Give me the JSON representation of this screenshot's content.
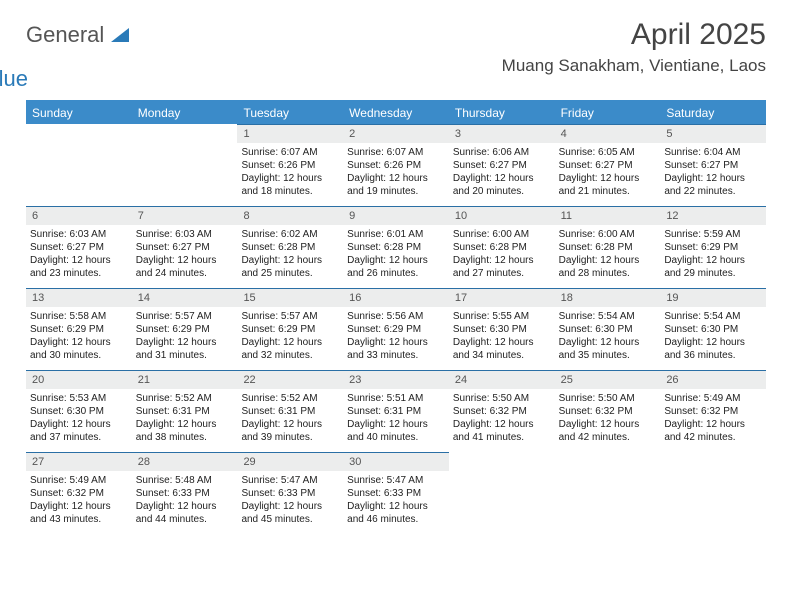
{
  "brand": {
    "general": "General",
    "blue": "Blue"
  },
  "title": "April 2025",
  "location": "Muang Sanakham, Vientiane, Laos",
  "day_headers": [
    "Sunday",
    "Monday",
    "Tuesday",
    "Wednesday",
    "Thursday",
    "Friday",
    "Saturday"
  ],
  "colors": {
    "header_bg": "#3b8bc9",
    "daynum_bg": "#eceded",
    "rule": "#2a6fa5",
    "text": "#222222"
  },
  "weeks": [
    [
      {
        "empty": true
      },
      {
        "empty": true
      },
      {
        "day": "1",
        "sunrise": "Sunrise: 6:07 AM",
        "sunset": "Sunset: 6:26 PM",
        "dl1": "Daylight: 12 hours",
        "dl2": "and 18 minutes."
      },
      {
        "day": "2",
        "sunrise": "Sunrise: 6:07 AM",
        "sunset": "Sunset: 6:26 PM",
        "dl1": "Daylight: 12 hours",
        "dl2": "and 19 minutes."
      },
      {
        "day": "3",
        "sunrise": "Sunrise: 6:06 AM",
        "sunset": "Sunset: 6:27 PM",
        "dl1": "Daylight: 12 hours",
        "dl2": "and 20 minutes."
      },
      {
        "day": "4",
        "sunrise": "Sunrise: 6:05 AM",
        "sunset": "Sunset: 6:27 PM",
        "dl1": "Daylight: 12 hours",
        "dl2": "and 21 minutes."
      },
      {
        "day": "5",
        "sunrise": "Sunrise: 6:04 AM",
        "sunset": "Sunset: 6:27 PM",
        "dl1": "Daylight: 12 hours",
        "dl2": "and 22 minutes."
      }
    ],
    [
      {
        "day": "6",
        "sunrise": "Sunrise: 6:03 AM",
        "sunset": "Sunset: 6:27 PM",
        "dl1": "Daylight: 12 hours",
        "dl2": "and 23 minutes."
      },
      {
        "day": "7",
        "sunrise": "Sunrise: 6:03 AM",
        "sunset": "Sunset: 6:27 PM",
        "dl1": "Daylight: 12 hours",
        "dl2": "and 24 minutes."
      },
      {
        "day": "8",
        "sunrise": "Sunrise: 6:02 AM",
        "sunset": "Sunset: 6:28 PM",
        "dl1": "Daylight: 12 hours",
        "dl2": "and 25 minutes."
      },
      {
        "day": "9",
        "sunrise": "Sunrise: 6:01 AM",
        "sunset": "Sunset: 6:28 PM",
        "dl1": "Daylight: 12 hours",
        "dl2": "and 26 minutes."
      },
      {
        "day": "10",
        "sunrise": "Sunrise: 6:00 AM",
        "sunset": "Sunset: 6:28 PM",
        "dl1": "Daylight: 12 hours",
        "dl2": "and 27 minutes."
      },
      {
        "day": "11",
        "sunrise": "Sunrise: 6:00 AM",
        "sunset": "Sunset: 6:28 PM",
        "dl1": "Daylight: 12 hours",
        "dl2": "and 28 minutes."
      },
      {
        "day": "12",
        "sunrise": "Sunrise: 5:59 AM",
        "sunset": "Sunset: 6:29 PM",
        "dl1": "Daylight: 12 hours",
        "dl2": "and 29 minutes."
      }
    ],
    [
      {
        "day": "13",
        "sunrise": "Sunrise: 5:58 AM",
        "sunset": "Sunset: 6:29 PM",
        "dl1": "Daylight: 12 hours",
        "dl2": "and 30 minutes."
      },
      {
        "day": "14",
        "sunrise": "Sunrise: 5:57 AM",
        "sunset": "Sunset: 6:29 PM",
        "dl1": "Daylight: 12 hours",
        "dl2": "and 31 minutes."
      },
      {
        "day": "15",
        "sunrise": "Sunrise: 5:57 AM",
        "sunset": "Sunset: 6:29 PM",
        "dl1": "Daylight: 12 hours",
        "dl2": "and 32 minutes."
      },
      {
        "day": "16",
        "sunrise": "Sunrise: 5:56 AM",
        "sunset": "Sunset: 6:29 PM",
        "dl1": "Daylight: 12 hours",
        "dl2": "and 33 minutes."
      },
      {
        "day": "17",
        "sunrise": "Sunrise: 5:55 AM",
        "sunset": "Sunset: 6:30 PM",
        "dl1": "Daylight: 12 hours",
        "dl2": "and 34 minutes."
      },
      {
        "day": "18",
        "sunrise": "Sunrise: 5:54 AM",
        "sunset": "Sunset: 6:30 PM",
        "dl1": "Daylight: 12 hours",
        "dl2": "and 35 minutes."
      },
      {
        "day": "19",
        "sunrise": "Sunrise: 5:54 AM",
        "sunset": "Sunset: 6:30 PM",
        "dl1": "Daylight: 12 hours",
        "dl2": "and 36 minutes."
      }
    ],
    [
      {
        "day": "20",
        "sunrise": "Sunrise: 5:53 AM",
        "sunset": "Sunset: 6:30 PM",
        "dl1": "Daylight: 12 hours",
        "dl2": "and 37 minutes."
      },
      {
        "day": "21",
        "sunrise": "Sunrise: 5:52 AM",
        "sunset": "Sunset: 6:31 PM",
        "dl1": "Daylight: 12 hours",
        "dl2": "and 38 minutes."
      },
      {
        "day": "22",
        "sunrise": "Sunrise: 5:52 AM",
        "sunset": "Sunset: 6:31 PM",
        "dl1": "Daylight: 12 hours",
        "dl2": "and 39 minutes."
      },
      {
        "day": "23",
        "sunrise": "Sunrise: 5:51 AM",
        "sunset": "Sunset: 6:31 PM",
        "dl1": "Daylight: 12 hours",
        "dl2": "and 40 minutes."
      },
      {
        "day": "24",
        "sunrise": "Sunrise: 5:50 AM",
        "sunset": "Sunset: 6:32 PM",
        "dl1": "Daylight: 12 hours",
        "dl2": "and 41 minutes."
      },
      {
        "day": "25",
        "sunrise": "Sunrise: 5:50 AM",
        "sunset": "Sunset: 6:32 PM",
        "dl1": "Daylight: 12 hours",
        "dl2": "and 42 minutes."
      },
      {
        "day": "26",
        "sunrise": "Sunrise: 5:49 AM",
        "sunset": "Sunset: 6:32 PM",
        "dl1": "Daylight: 12 hours",
        "dl2": "and 42 minutes."
      }
    ],
    [
      {
        "day": "27",
        "sunrise": "Sunrise: 5:49 AM",
        "sunset": "Sunset: 6:32 PM",
        "dl1": "Daylight: 12 hours",
        "dl2": "and 43 minutes."
      },
      {
        "day": "28",
        "sunrise": "Sunrise: 5:48 AM",
        "sunset": "Sunset: 6:33 PM",
        "dl1": "Daylight: 12 hours",
        "dl2": "and 44 minutes."
      },
      {
        "day": "29",
        "sunrise": "Sunrise: 5:47 AM",
        "sunset": "Sunset: 6:33 PM",
        "dl1": "Daylight: 12 hours",
        "dl2": "and 45 minutes."
      },
      {
        "day": "30",
        "sunrise": "Sunrise: 5:47 AM",
        "sunset": "Sunset: 6:33 PM",
        "dl1": "Daylight: 12 hours",
        "dl2": "and 46 minutes."
      },
      {
        "empty": true
      },
      {
        "empty": true
      },
      {
        "empty": true
      }
    ]
  ]
}
